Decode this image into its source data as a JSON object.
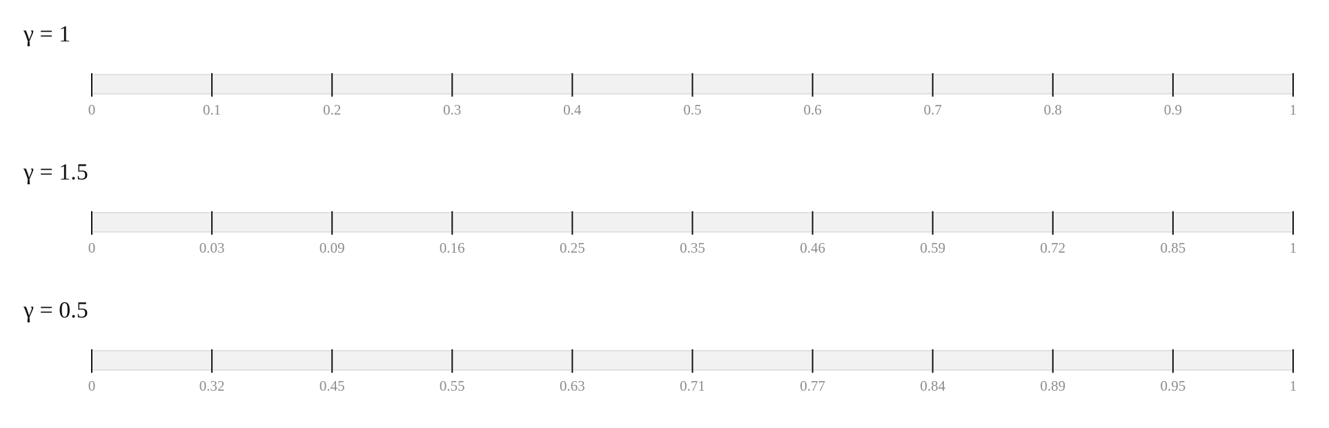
{
  "chart_data": [
    {
      "type": "scale-ticks",
      "title": "γ = 1",
      "gamma": 1,
      "domain": [
        0,
        1
      ],
      "tick_labels": [
        "0",
        "0.1",
        "0.2",
        "0.3",
        "0.4",
        "0.5",
        "0.6",
        "0.7",
        "0.8",
        "0.9",
        "1"
      ]
    },
    {
      "type": "scale-ticks",
      "title": "γ = 1.5",
      "gamma": 1.5,
      "domain": [
        0,
        1
      ],
      "tick_labels": [
        "0",
        "0.03",
        "0.09",
        "0.16",
        "0.25",
        "0.35",
        "0.46",
        "0.59",
        "0.72",
        "0.85",
        "1"
      ]
    },
    {
      "type": "scale-ticks",
      "title": "γ = 0.5",
      "gamma": 0.5,
      "domain": [
        0,
        1
      ],
      "tick_labels": [
        "0",
        "0.32",
        "0.45",
        "0.55",
        "0.63",
        "0.71",
        "0.77",
        "0.84",
        "0.89",
        "0.95",
        "1"
      ]
    }
  ],
  "colors": {
    "track_fill": "#f1f1f1",
    "track_stroke": "#d9d9d9",
    "tick": "#111111",
    "tick_label": "#8c8c8c",
    "title": "#111111"
  }
}
